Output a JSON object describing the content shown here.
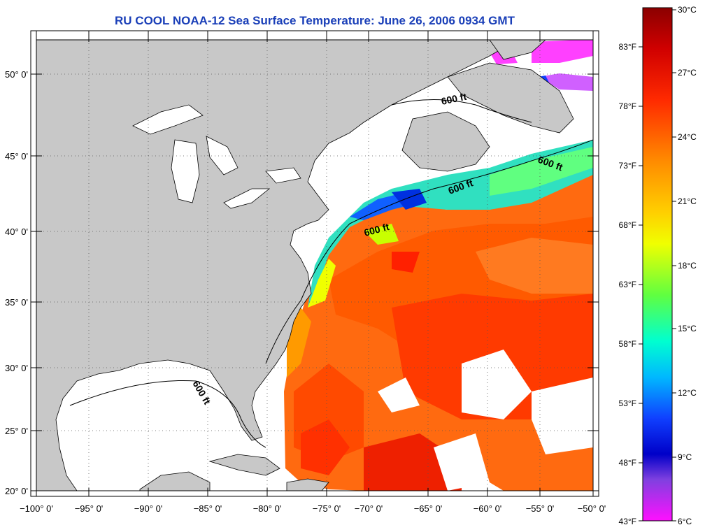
{
  "header": {
    "title": "RU COOL  NOAA-12  Sea Surface Temperature:  June 26, 2006 0934 GMT"
  },
  "map": {
    "latitude_labels": [
      "50° 0'",
      "45° 0'",
      "40° 0'",
      "35° 0'",
      "30° 0'",
      "25° 0'",
      "20° 0'"
    ],
    "longitude_labels": [
      "−100° 0'",
      "−95° 0'",
      "−90° 0'",
      "−85° 0'",
      "−80° 0'",
      "−75° 0'",
      "−70° 0'",
      "−65° 0'",
      "−60° 0'",
      "−55° 0'",
      "−50° 0'"
    ],
    "contour_labels": [
      "600 ft",
      "600 ft",
      "600 ft",
      "600 ft",
      "600 ft"
    ],
    "land_color": "#c8c8c8",
    "no_data_color": "#ffffff"
  },
  "colorbar": {
    "celsius_labels": [
      "30°C",
      "27°C",
      "24°C",
      "21°C",
      "18°C",
      "15°C",
      "12°C",
      "9°C",
      "6°C"
    ],
    "fahrenheit_labels": [
      "83°F",
      "78°F",
      "73°F",
      "68°F",
      "63°F",
      "58°F",
      "53°F",
      "48°F",
      "43°F"
    ]
  }
}
